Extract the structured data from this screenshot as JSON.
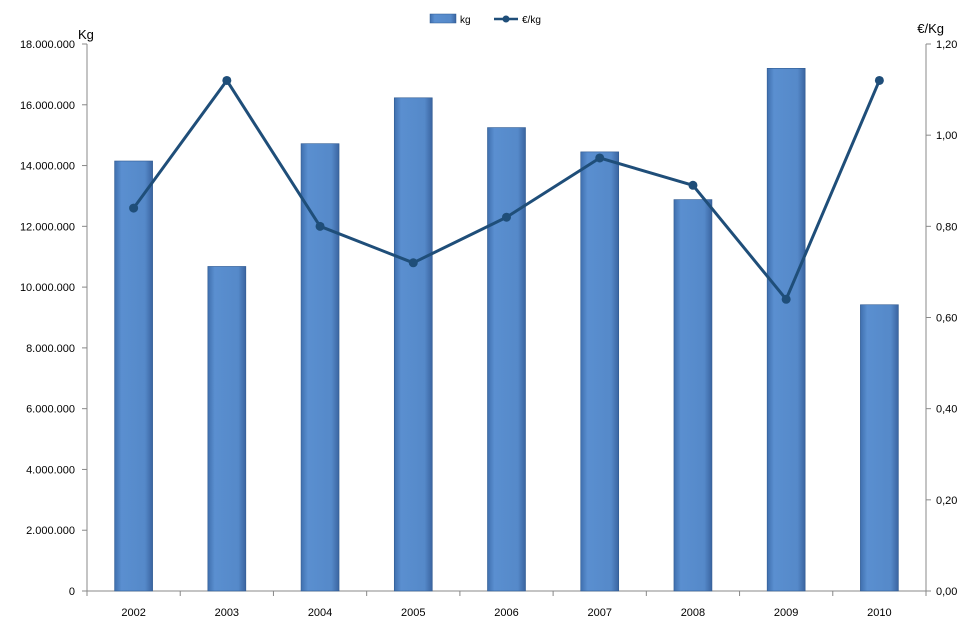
{
  "chart_data": {
    "type": "bar",
    "categories": [
      "2002",
      "2003",
      "2004",
      "2005",
      "2006",
      "2007",
      "2008",
      "2009",
      "2010"
    ],
    "series": [
      {
        "name": "kg",
        "type": "bar",
        "axis": "left",
        "color": "#5589C9",
        "values": [
          14150000,
          10680000,
          14720000,
          16230000,
          15250000,
          14450000,
          12880000,
          17200000,
          9420000
        ]
      },
      {
        "name": "€/kg",
        "type": "line",
        "axis": "right",
        "color": "#1F4E79",
        "values": [
          0.84,
          1.12,
          0.8,
          0.72,
          0.82,
          0.95,
          0.89,
          0.64,
          1.12
        ]
      }
    ],
    "y_left": {
      "label": "Kg",
      "min": 0,
      "max": 18000000,
      "ticks": [
        "0",
        "2.000.000",
        "4.000.000",
        "6.000.000",
        "8.000.000",
        "10.000.000",
        "12.000.000",
        "14.000.000",
        "16.000.000",
        "18.000.000"
      ]
    },
    "y_right": {
      "label": "€/Kg",
      "min": 0,
      "max": 1.2,
      "ticks": [
        "0,00",
        "0,20",
        "0,40",
        "0,60",
        "0,80",
        "1,00",
        "1,20"
      ]
    },
    "legend": {
      "position": "top-center"
    },
    "grid": false
  }
}
